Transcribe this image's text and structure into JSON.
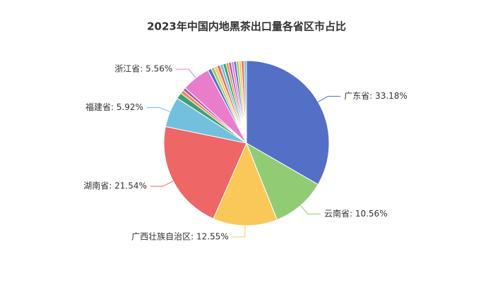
{
  "chart_data": {
    "type": "pie",
    "title": "2023年中国内地黑茶出口量各省区市占比",
    "values": [
      33.18,
      10.56,
      12.55,
      21.54,
      5.92,
      1.19,
      0.7,
      0.6,
      5.56,
      0.7,
      0.6,
      0.6,
      0.6,
      0.6,
      0.6,
      0.5,
      0.5,
      0.5,
      0.5,
      0.5,
      0.5,
      0.5,
      0.5
    ],
    "value_labels": [
      "广东省: 33.18%",
      "云南省: 10.56%",
      "广西壮族自治区: 12.55%",
      "湖南省: 21.54%",
      "福建省: 5.92%",
      null,
      null,
      null,
      "浙江省: 5.56%",
      null,
      null,
      null,
      null,
      null,
      null,
      null,
      null,
      null,
      null,
      null,
      null,
      null,
      null
    ],
    "colors": [
      "#5470c6",
      "#91cc75",
      "#fac858",
      "#ee6666",
      "#73c0de",
      "#3ba272",
      "#fc8452",
      "#9a60b4",
      "#ea7ccc"
    ]
  }
}
